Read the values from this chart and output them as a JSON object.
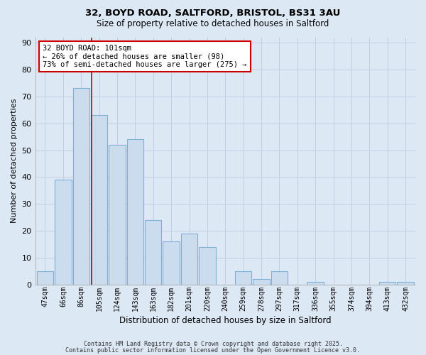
{
  "title": "32, BOYD ROAD, SALTFORD, BRISTOL, BS31 3AU",
  "subtitle": "Size of property relative to detached houses in Saltford",
  "xlabel": "Distribution of detached houses by size in Saltford",
  "ylabel": "Number of detached properties",
  "bar_labels": [
    "47sqm",
    "66sqm",
    "86sqm",
    "105sqm",
    "124sqm",
    "143sqm",
    "163sqm",
    "182sqm",
    "201sqm",
    "220sqm",
    "240sqm",
    "259sqm",
    "278sqm",
    "297sqm",
    "317sqm",
    "336sqm",
    "355sqm",
    "374sqm",
    "394sqm",
    "413sqm",
    "432sqm"
  ],
  "bar_values": [
    5,
    39,
    73,
    63,
    52,
    54,
    24,
    16,
    19,
    14,
    0,
    5,
    2,
    5,
    0,
    1,
    0,
    0,
    0,
    1,
    1
  ],
  "bar_color": "#ccdcef",
  "bar_edge_color": "#7fafd4",
  "vline_pos": 2.58,
  "vline_color": "#cc0000",
  "ylim": [
    0,
    92
  ],
  "yticks": [
    0,
    10,
    20,
    30,
    40,
    50,
    60,
    70,
    80,
    90
  ],
  "annotation_title": "32 BOYD ROAD: 101sqm",
  "annotation_line1": "← 26% of detached houses are smaller (98)",
  "annotation_line2": "73% of semi-detached houses are larger (275) →",
  "annotation_box_color": "#ffffff",
  "annotation_box_edge": "#cc0000",
  "background_color": "#dde8f5",
  "plot_bg_color": "#dde8f5",
  "grid_color": "#c0cfe0",
  "footer_line1": "Contains HM Land Registry data © Crown copyright and database right 2025.",
  "footer_line2": "Contains public sector information licensed under the Open Government Licence v3.0."
}
